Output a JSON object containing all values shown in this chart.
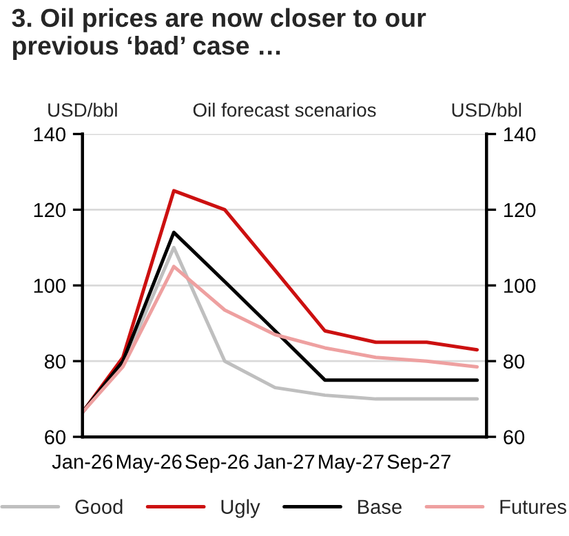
{
  "chart_data": {
    "type": "line",
    "title": "3. Oil prices are now closer to our\nprevious ‘bad’ case …",
    "subtitle": "Oil forecast scenarios",
    "ylabel": "USD/bbl",
    "y2label": "USD/bbl",
    "x": [
      "2026-01-01",
      "2026-03-15",
      "2026-06-15",
      "2026-09-15",
      "2026-12-15",
      "2027-03-15",
      "2027-06-15",
      "2027-09-15",
      "2027-12-15"
    ],
    "series": [
      {
        "name": "Good",
        "color": "#bfbfbf",
        "values": [
          66.5,
          79,
          110,
          80,
          73,
          71,
          70,
          70,
          70
        ]
      },
      {
        "name": "Ugly",
        "color": "#cc1010",
        "values": [
          66.5,
          81,
          125,
          120,
          104,
          88,
          85,
          85,
          83
        ]
      },
      {
        "name": "Base",
        "color": "#000000",
        "values": [
          66.5,
          80,
          114,
          101,
          88,
          75,
          75,
          75,
          75
        ]
      },
      {
        "name": "Futures",
        "color": "#eea0a0",
        "values": [
          66.5,
          78.5,
          105,
          93.5,
          87,
          83.5,
          81,
          80,
          78.5
        ]
      }
    ],
    "xlim": [
      "2026-01-01",
      "2028-01-01"
    ],
    "xticks": [
      {
        "value": "2026-01-01",
        "label": "Jan-26"
      },
      {
        "value": "2026-05-01",
        "label": "May-26"
      },
      {
        "value": "2026-09-01",
        "label": "Sep-26"
      },
      {
        "value": "2027-01-01",
        "label": "Jan-27"
      },
      {
        "value": "2027-05-01",
        "label": "May-27"
      },
      {
        "value": "2027-09-01",
        "label": "Sep-27"
      },
      {
        "value": "2028-01-01",
        "label": null
      }
    ],
    "ylim": [
      60,
      140
    ],
    "yticks": [
      60,
      80,
      100,
      120,
      140
    ],
    "y2lim": [
      60,
      140
    ],
    "y2ticks": [
      60,
      80,
      100,
      120,
      140
    ],
    "grid": "y",
    "legend": "bottom",
    "line_style": "solid",
    "marker": "none"
  }
}
